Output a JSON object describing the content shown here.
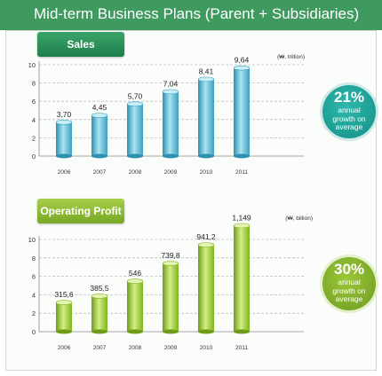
{
  "title": "Mid-term Business Plans (Parent + Subsidiaries)",
  "chart_data": [
    {
      "type": "bar",
      "title": "Sales",
      "unit": "(₩, trillion)",
      "categories": [
        "2006",
        "2007",
        "2008",
        "2009",
        "2010",
        "2011"
      ],
      "values": [
        3.7,
        4.45,
        5.7,
        7.04,
        8.41,
        9.64
      ],
      "value_labels": [
        "3,70",
        "4,45",
        "5,70",
        "7,04",
        "8,41",
        "9,64"
      ],
      "yticks": [
        0,
        2,
        4,
        6,
        8,
        10
      ],
      "ylim": [
        0,
        10
      ],
      "bar_color": "#4fb5cf",
      "badge": {
        "percent": "21%",
        "text": "annual growth on average",
        "color": "#1ea89e"
      }
    },
    {
      "type": "bar",
      "title": "Operating Profit",
      "unit": "(₩, billion)",
      "categories": [
        "2006",
        "2007",
        "2008",
        "2009",
        "2010",
        "2011"
      ],
      "values": [
        315.6,
        385.5,
        546,
        739.8,
        941.2,
        1149
      ],
      "value_labels": [
        "315,6",
        "385,5",
        "546",
        "739,8",
        "941,2",
        "1,149"
      ],
      "yticks": [
        0,
        2,
        4,
        6,
        8,
        10
      ],
      "ylim": [
        0,
        10
      ],
      "bar_color": "#8fbd2a",
      "badge": {
        "percent": "30%",
        "text": "annual growth on average",
        "color": "#84b22a"
      }
    }
  ]
}
